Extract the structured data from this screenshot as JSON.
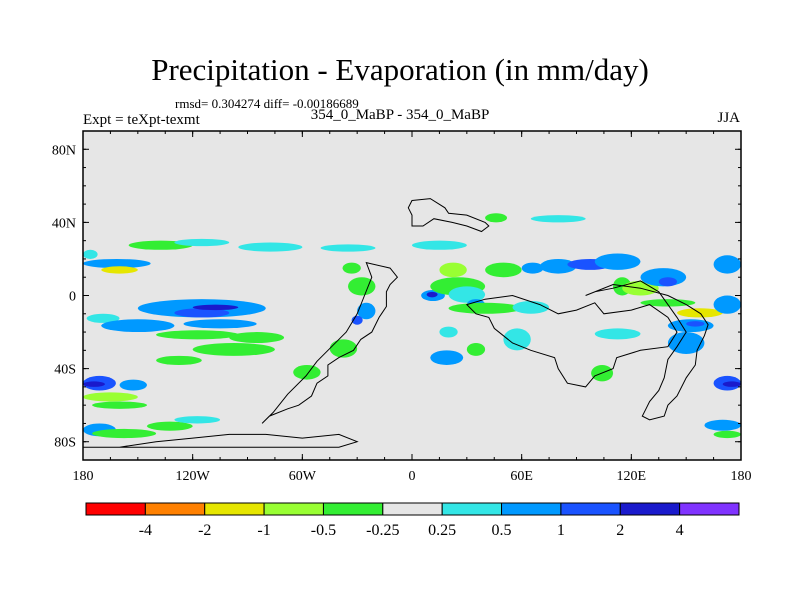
{
  "plot": {
    "title": "Precipitation - Evaporation (in mm/day)",
    "stats": "rmsd= 0.304274 diff= -0.00186689",
    "left_label": "Expt = teXpt-texmt",
    "center_label": "354_0_MaBP - 354_0_MaBP",
    "right_label": "JJA"
  },
  "chart_data": {
    "type": "heatmap",
    "title": "Precipitation - Evaporation (in mm/day)",
    "xlabel": "",
    "ylabel": "",
    "xlim": [
      -180,
      180
    ],
    "ylim": [
      -90,
      90
    ],
    "x_ticks": [
      {
        "value": -180,
        "label": "180"
      },
      {
        "value": -120,
        "label": "120W"
      },
      {
        "value": -60,
        "label": "60W"
      },
      {
        "value": 0,
        "label": "0"
      },
      {
        "value": 60,
        "label": "60E"
      },
      {
        "value": 120,
        "label": "120E"
      },
      {
        "value": 180,
        "label": "180"
      }
    ],
    "y_ticks": [
      {
        "value": 80,
        "label": "80N"
      },
      {
        "value": 40,
        "label": "40N"
      },
      {
        "value": 0,
        "label": "0"
      },
      {
        "value": -40,
        "label": "40S"
      },
      {
        "value": -80,
        "label": "80S"
      }
    ],
    "background_color": "#e6e6e6",
    "colorbar": {
      "colors": [
        "#ff0000",
        "#ff8000",
        "#e6e600",
        "#99ff33",
        "#33ee33",
        "#e6e6e6",
        "#33e6e6",
        "#0099ff",
        "#1a53ff",
        "#1a1acc",
        "#8033ff"
      ],
      "labels": [
        "-4",
        "-2",
        "-1",
        "-0.5",
        "-0.25",
        "0.25",
        "0.5",
        "1",
        "2",
        "4"
      ]
    },
    "regions": [
      {
        "lon": [
          -180,
          -143
        ],
        "lat": [
          15,
          20
        ],
        "value": 0.6
      },
      {
        "lon": [
          -170,
          -150
        ],
        "lat": [
          12,
          16
        ],
        "value": -1.5
      },
      {
        "lon": [
          -180,
          -172
        ],
        "lat": [
          20,
          25
        ],
        "value": 0.3
      },
      {
        "lon": [
          -155,
          -120
        ],
        "lat": [
          25,
          30
        ],
        "value": -0.3
      },
      {
        "lon": [
          -130,
          -100
        ],
        "lat": [
          27,
          31
        ],
        "value": 0.3
      },
      {
        "lon": [
          -178,
          -160
        ],
        "lat": [
          -15,
          -10
        ],
        "value": 0.4
      },
      {
        "lon": [
          -170,
          -130
        ],
        "lat": [
          -20,
          -13
        ],
        "value": 0.5
      },
      {
        "lon": [
          -150,
          -80
        ],
        "lat": [
          -12,
          -2
        ],
        "value": 0.7
      },
      {
        "lon": [
          -130,
          -100
        ],
        "lat": [
          -12,
          -7
        ],
        "value": 1.5
      },
      {
        "lon": [
          -120,
          -95
        ],
        "lat": [
          -8,
          -5
        ],
        "value": 2.5
      },
      {
        "lon": [
          -125,
          -85
        ],
        "lat": [
          -18,
          -13
        ],
        "value": 0.6
      },
      {
        "lon": [
          -140,
          -95
        ],
        "lat": [
          -24,
          -19
        ],
        "value": -0.5
      },
      {
        "lon": [
          -100,
          -70
        ],
        "lat": [
          -26,
          -20
        ],
        "value": -0.3
      },
      {
        "lon": [
          -120,
          -75
        ],
        "lat": [
          -33,
          -26
        ],
        "value": -0.4
      },
      {
        "lon": [
          -140,
          -115
        ],
        "lat": [
          -38,
          -33
        ],
        "value": -0.3
      },
      {
        "lon": [
          -180,
          -162
        ],
        "lat": [
          -52,
          -44
        ],
        "value": 1.2
      },
      {
        "lon": [
          -180,
          -168
        ],
        "lat": [
          -50,
          -47
        ],
        "value": 2.5
      },
      {
        "lon": [
          -160,
          -145
        ],
        "lat": [
          -52,
          -46
        ],
        "value": 0.5
      },
      {
        "lon": [
          -180,
          -150
        ],
        "lat": [
          -58,
          -53
        ],
        "value": -0.6
      },
      {
        "lon": [
          -175,
          -145
        ],
        "lat": [
          -62,
          -58
        ],
        "value": -0.3
      },
      {
        "lon": [
          -180,
          -162
        ],
        "lat": [
          -77,
          -70
        ],
        "value": 0.5
      },
      {
        "lon": [
          -175,
          -140
        ],
        "lat": [
          -78,
          -73
        ],
        "value": -0.5
      },
      {
        "lon": [
          -145,
          -120
        ],
        "lat": [
          -74,
          -69
        ],
        "value": -0.3
      },
      {
        "lon": [
          -130,
          -105
        ],
        "lat": [
          -70,
          -66
        ],
        "value": 0.3
      },
      {
        "lon": [
          -38,
          -28
        ],
        "lat": [
          12,
          18
        ],
        "value": -0.5
      },
      {
        "lon": [
          -35,
          -20
        ],
        "lat": [
          0,
          10
        ],
        "value": -0.3
      },
      {
        "lon": [
          -30,
          -20
        ],
        "lat": [
          -13,
          -4
        ],
        "value": 0.5
      },
      {
        "lon": [
          -33,
          -27
        ],
        "lat": [
          -16,
          -11
        ],
        "value": 1.2
      },
      {
        "lon": [
          -45,
          -30
        ],
        "lat": [
          -34,
          -24
        ],
        "value": -0.4
      },
      {
        "lon": [
          -65,
          -50
        ],
        "lat": [
          -46,
          -38
        ],
        "value": -0.3
      },
      {
        "lon": [
          5,
          18
        ],
        "lat": [
          -3,
          3
        ],
        "value": 0.6
      },
      {
        "lon": [
          8,
          14
        ],
        "lat": [
          -1,
          2
        ],
        "value": 2.5
      },
      {
        "lon": [
          15,
          30
        ],
        "lat": [
          10,
          18
        ],
        "value": -0.6
      },
      {
        "lon": [
          10,
          40
        ],
        "lat": [
          0,
          10
        ],
        "value": -0.5
      },
      {
        "lon": [
          20,
          40
        ],
        "lat": [
          -4,
          5
        ],
        "value": 0.4
      },
      {
        "lon": [
          30,
          40
        ],
        "lat": [
          -8,
          -2
        ],
        "value": 0.9
      },
      {
        "lon": [
          20,
          60
        ],
        "lat": [
          -10,
          -4
        ],
        "value": -0.3
      },
      {
        "lon": [
          15,
          25
        ],
        "lat": [
          -23,
          -17
        ],
        "value": 0.4
      },
      {
        "lon": [
          30,
          40
        ],
        "lat": [
          -33,
          -26
        ],
        "value": -0.5
      },
      {
        "lon": [
          10,
          28
        ],
        "lat": [
          -38,
          -30
        ],
        "value": 0.5
      },
      {
        "lon": [
          50,
          65
        ],
        "lat": [
          -30,
          -18
        ],
        "value": 0.4
      },
      {
        "lon": [
          55,
          75
        ],
        "lat": [
          -10,
          -3
        ],
        "value": 0.3
      },
      {
        "lon": [
          40,
          60
        ],
        "lat": [
          10,
          18
        ],
        "value": -0.4
      },
      {
        "lon": [
          60,
          72
        ],
        "lat": [
          12,
          18
        ],
        "value": 0.5
      },
      {
        "lon": [
          70,
          90
        ],
        "lat": [
          12,
          20
        ],
        "value": 0.8
      },
      {
        "lon": [
          85,
          110
        ],
        "lat": [
          14,
          20
        ],
        "value": 1.6
      },
      {
        "lon": [
          100,
          125
        ],
        "lat": [
          14,
          23
        ],
        "value": 0.7
      },
      {
        "lon": [
          110,
          120
        ],
        "lat": [
          0,
          10
        ],
        "value": -0.3
      },
      {
        "lon": [
          115,
          135
        ],
        "lat": [
          0,
          8
        ],
        "value": -0.7
      },
      {
        "lon": [
          125,
          150
        ],
        "lat": [
          5,
          15
        ],
        "value": 0.6
      },
      {
        "lon": [
          135,
          145
        ],
        "lat": [
          5,
          10
        ],
        "value": 1.5
      },
      {
        "lon": [
          125,
          155
        ],
        "lat": [
          -6,
          -2
        ],
        "value": -0.5
      },
      {
        "lon": [
          145,
          170
        ],
        "lat": [
          -12,
          -7
        ],
        "value": -1.5
      },
      {
        "lon": [
          140,
          165
        ],
        "lat": [
          -20,
          -13
        ],
        "value": 0.5
      },
      {
        "lon": [
          150,
          160
        ],
        "lat": [
          -17,
          -14
        ],
        "value": 1.2
      },
      {
        "lon": [
          140,
          160
        ],
        "lat": [
          -32,
          -20
        ],
        "value": 0.6
      },
      {
        "lon": [
          165,
          180
        ],
        "lat": [
          -10,
          0
        ],
        "value": 0.5
      },
      {
        "lon": [
          165,
          180
        ],
        "lat": [
          12,
          22
        ],
        "value": 0.5
      },
      {
        "lon": [
          165,
          180
        ],
        "lat": [
          -52,
          -44
        ],
        "value": 1.2
      },
      {
        "lon": [
          170,
          180
        ],
        "lat": [
          -50,
          -47
        ],
        "value": 2.5
      },
      {
        "lon": [
          160,
          180
        ],
        "lat": [
          -74,
          -68
        ],
        "value": 0.5
      },
      {
        "lon": [
          165,
          180
        ],
        "lat": [
          -78,
          -74
        ],
        "value": -0.4
      },
      {
        "lon": [
          100,
          125
        ],
        "lat": [
          -24,
          -18
        ],
        "value": 0.4
      },
      {
        "lon": [
          98,
          110
        ],
        "lat": [
          -47,
          -38
        ],
        "value": -0.3
      },
      {
        "lon": [
          40,
          52
        ],
        "lat": [
          40,
          45
        ],
        "value": -0.3
      },
      {
        "lon": [
          65,
          95
        ],
        "lat": [
          40,
          44
        ],
        "value": 0.3
      },
      {
        "lon": [
          -95,
          -60
        ],
        "lat": [
          24,
          29
        ],
        "value": 0.3
      },
      {
        "lon": [
          -50,
          -20
        ],
        "lat": [
          24,
          28
        ],
        "value": 0.3
      },
      {
        "lon": [
          0,
          30
        ],
        "lat": [
          25,
          30
        ],
        "value": 0.3
      }
    ],
    "outlines": [
      {
        "name": "north-continent",
        "points": [
          [
            0,
            52
          ],
          [
            10,
            53
          ],
          [
            18,
            48
          ],
          [
            20,
            45
          ],
          [
            30,
            44
          ],
          [
            40,
            40
          ],
          [
            42,
            38
          ],
          [
            38,
            35
          ],
          [
            30,
            38
          ],
          [
            22,
            40
          ],
          [
            12,
            42
          ],
          [
            6,
            38
          ],
          [
            0,
            38
          ],
          [
            0,
            44
          ],
          [
            -2,
            48
          ],
          [
            0,
            52
          ]
        ]
      },
      {
        "name": "south-america",
        "points": [
          [
            -25,
            18
          ],
          [
            -12,
            15
          ],
          [
            -8,
            10
          ],
          [
            -12,
            6
          ],
          [
            -14,
            2
          ],
          [
            -14,
            -6
          ],
          [
            -18,
            -12
          ],
          [
            -22,
            -20
          ],
          [
            -28,
            -24
          ],
          [
            -32,
            -30
          ],
          [
            -40,
            -34
          ],
          [
            -46,
            -38
          ],
          [
            -46,
            -44
          ],
          [
            -52,
            -48
          ],
          [
            -55,
            -55
          ],
          [
            -62,
            -60
          ],
          [
            -68,
            -62
          ],
          [
            -78,
            -66
          ],
          [
            -82,
            -70
          ],
          [
            -76,
            -64
          ],
          [
            -68,
            -54
          ],
          [
            -58,
            -44
          ],
          [
            -52,
            -36
          ],
          [
            -44,
            -28
          ],
          [
            -36,
            -20
          ],
          [
            -30,
            -10
          ],
          [
            -26,
            0
          ],
          [
            -22,
            10
          ],
          [
            -25,
            18
          ]
        ]
      },
      {
        "name": "central-landmass",
        "points": [
          [
            30,
            -5
          ],
          [
            40,
            -2
          ],
          [
            55,
            0
          ],
          [
            70,
            -5
          ],
          [
            80,
            -10
          ],
          [
            90,
            -8
          ],
          [
            100,
            -4
          ],
          [
            105,
            -10
          ],
          [
            120,
            -8
          ],
          [
            130,
            -5
          ],
          [
            140,
            -12
          ],
          [
            145,
            -20
          ],
          [
            140,
            -28
          ],
          [
            125,
            -30
          ],
          [
            112,
            -34
          ],
          [
            110,
            -40
          ],
          [
            100,
            -44
          ],
          [
            95,
            -50
          ],
          [
            85,
            -48
          ],
          [
            80,
            -40
          ],
          [
            78,
            -34
          ],
          [
            65,
            -30
          ],
          [
            55,
            -26
          ],
          [
            50,
            -22
          ],
          [
            45,
            -18
          ],
          [
            42,
            -12
          ],
          [
            35,
            -10
          ],
          [
            30,
            -5
          ]
        ]
      },
      {
        "name": "east-continent",
        "points": [
          [
            95,
            0
          ],
          [
            100,
            2
          ],
          [
            110,
            4
          ],
          [
            125,
            8
          ],
          [
            135,
            2
          ],
          [
            140,
            -5
          ],
          [
            145,
            -12
          ],
          [
            150,
            -20
          ],
          [
            145,
            -28
          ],
          [
            140,
            -35
          ],
          [
            138,
            -45
          ],
          [
            135,
            -52
          ],
          [
            130,
            -58
          ],
          [
            128,
            -62
          ],
          [
            126,
            -66
          ],
          [
            130,
            -68
          ],
          [
            138,
            -66
          ],
          [
            140,
            -60
          ],
          [
            145,
            -55
          ],
          [
            150,
            -45
          ],
          [
            155,
            -38
          ],
          [
            156,
            -30
          ],
          [
            160,
            -22
          ],
          [
            162,
            -16
          ],
          [
            158,
            -10
          ],
          [
            150,
            -5
          ],
          [
            140,
            0
          ],
          [
            125,
            4
          ],
          [
            110,
            6
          ],
          [
            95,
            0
          ]
        ]
      },
      {
        "name": "antarctic-coast",
        "points": [
          [
            -180,
            -83
          ],
          [
            -160,
            -83
          ],
          [
            -140,
            -80
          ],
          [
            -120,
            -78
          ],
          [
            -100,
            -76
          ],
          [
            -80,
            -76
          ],
          [
            -60,
            -78
          ],
          [
            -40,
            -76
          ],
          [
            -30,
            -80
          ],
          [
            -40,
            -83
          ],
          [
            -120,
            -83
          ],
          [
            -180,
            -83
          ]
        ]
      }
    ]
  }
}
